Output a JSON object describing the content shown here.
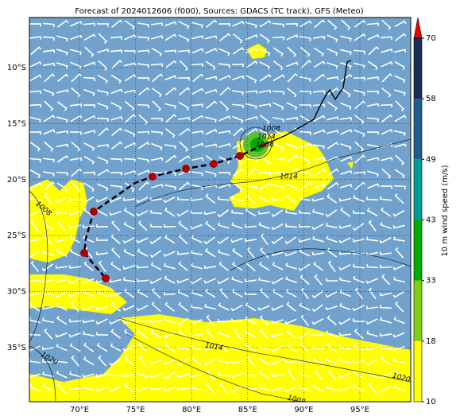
{
  "title": "Forecast of 2024012606 (f000), Sources: GDACS (TC track), GFS (Meteo)",
  "map": {
    "lat_labels": [
      "10°S",
      "15°S",
      "20°S",
      "25°S",
      "30°S",
      "35°S"
    ],
    "lon_labels": [
      "70°E",
      "75°E",
      "80°E",
      "85°E",
      "90°E",
      "95°E"
    ],
    "contour_labels": [
      "1008",
      "1014",
      "1008",
      "1014",
      "1008",
      "1020",
      "1014",
      "1020",
      "1008"
    ]
  },
  "colorbar": {
    "label": "10 m wind speed (m/s)",
    "ticks": [
      10,
      18,
      33,
      43,
      49,
      58,
      70
    ],
    "colors": [
      "#ffff00",
      "#80d010",
      "#00aa00",
      "#009a9a",
      "#1f5f8f",
      "#1a2a5a"
    ],
    "extend_color": "#ee0000"
  }
}
